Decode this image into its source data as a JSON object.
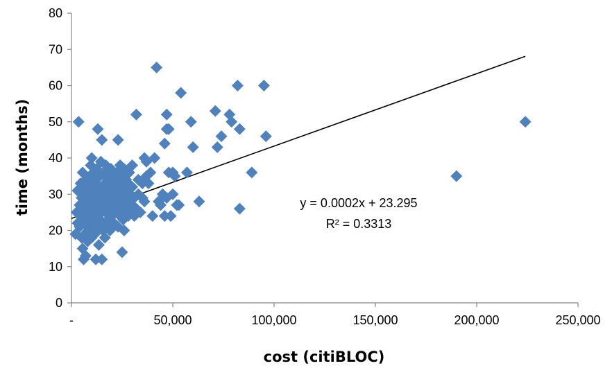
{
  "chart_data": {
    "type": "scatter",
    "xlabel": "cost (citiBLOC)",
    "ylabel": "time (months)",
    "xlim": [
      0,
      250000
    ],
    "ylim": [
      0,
      80
    ],
    "x_ticks": [
      0,
      50000,
      100000,
      150000,
      200000,
      250000
    ],
    "x_tick_labels": [
      "-",
      "50,000",
      "100,000",
      "150,000",
      "200,000",
      "250,000"
    ],
    "y_ticks": [
      0,
      10,
      20,
      30,
      40,
      50,
      60,
      70,
      80
    ],
    "y_tick_labels": [
      "0",
      "10",
      "20",
      "30",
      "40",
      "50",
      "60",
      "70",
      "80"
    ],
    "grid": false,
    "marker": "diamond",
    "marker_color": "#4F81BD",
    "trendline": {
      "type": "linear",
      "slope": 0.0002,
      "intercept": 23.295,
      "x_range": [
        0,
        224000
      ],
      "color": "#000000",
      "equation_label": "y = 0.0002x + 23.295",
      "r2_label": "R² = 0.3313"
    },
    "points": [
      [
        2000,
        19
      ],
      [
        2500,
        25
      ],
      [
        3000,
        31
      ],
      [
        3000,
        22
      ],
      [
        3500,
        50
      ],
      [
        4000,
        27
      ],
      [
        4000,
        21
      ],
      [
        4500,
        33
      ],
      [
        5000,
        29
      ],
      [
        5000,
        24
      ],
      [
        5000,
        18
      ],
      [
        5500,
        15
      ],
      [
        5500,
        36
      ],
      [
        6000,
        12
      ],
      [
        6000,
        26
      ],
      [
        6000,
        31
      ],
      [
        6500,
        22
      ],
      [
        6500,
        19
      ],
      [
        7000,
        34
      ],
      [
        7000,
        28
      ],
      [
        7000,
        13
      ],
      [
        7500,
        25
      ],
      [
        7500,
        30
      ],
      [
        8000,
        21
      ],
      [
        8000,
        17
      ],
      [
        8000,
        33
      ],
      [
        8500,
        27
      ],
      [
        8500,
        24
      ],
      [
        9000,
        35
      ],
      [
        9000,
        29
      ],
      [
        9000,
        20
      ],
      [
        9500,
        38
      ],
      [
        9500,
        26
      ],
      [
        10000,
        40
      ],
      [
        10000,
        31
      ],
      [
        10000,
        23
      ],
      [
        10000,
        18
      ],
      [
        10500,
        28
      ],
      [
        10500,
        34
      ],
      [
        11000,
        22
      ],
      [
        11000,
        36
      ],
      [
        11000,
        25
      ],
      [
        11500,
        30
      ],
      [
        11500,
        19
      ],
      [
        12000,
        27
      ],
      [
        12000,
        33
      ],
      [
        12000,
        12
      ],
      [
        12500,
        37
      ],
      [
        12500,
        24
      ],
      [
        13000,
        48
      ],
      [
        13000,
        29
      ],
      [
        13000,
        21
      ],
      [
        13500,
        31
      ],
      [
        13500,
        16
      ],
      [
        14000,
        26
      ],
      [
        14000,
        35
      ],
      [
        14000,
        23
      ],
      [
        14500,
        39
      ],
      [
        14500,
        28
      ],
      [
        15000,
        45
      ],
      [
        15000,
        32
      ],
      [
        15000,
        25
      ],
      [
        15000,
        12
      ],
      [
        15500,
        20
      ],
      [
        15500,
        30
      ],
      [
        16000,
        36
      ],
      [
        16000,
        27
      ],
      [
        16000,
        22
      ],
      [
        16500,
        33
      ],
      [
        16500,
        18
      ],
      [
        17000,
        29
      ],
      [
        17000,
        38
      ],
      [
        17000,
        25
      ],
      [
        17500,
        31
      ],
      [
        17500,
        21
      ],
      [
        18000,
        34
      ],
      [
        18000,
        27
      ],
      [
        18000,
        23
      ],
      [
        18500,
        30
      ],
      [
        18500,
        36
      ],
      [
        19000,
        26
      ],
      [
        19000,
        32
      ],
      [
        19000,
        20
      ],
      [
        19500,
        28
      ],
      [
        19500,
        37
      ],
      [
        20000,
        33
      ],
      [
        20000,
        24
      ],
      [
        20000,
        29
      ],
      [
        20500,
        27
      ],
      [
        20500,
        35
      ],
      [
        21000,
        31
      ],
      [
        21000,
        22
      ],
      [
        21500,
        26
      ],
      [
        21500,
        34
      ],
      [
        22000,
        30
      ],
      [
        22000,
        28
      ],
      [
        22500,
        25
      ],
      [
        22500,
        36
      ],
      [
        23000,
        45
      ],
      [
        23000,
        32
      ],
      [
        23000,
        21
      ],
      [
        23500,
        27
      ],
      [
        23500,
        33
      ],
      [
        24000,
        29
      ],
      [
        24000,
        38
      ],
      [
        24000,
        24
      ],
      [
        24500,
        31
      ],
      [
        24500,
        26
      ],
      [
        25000,
        14
      ],
      [
        25000,
        35
      ],
      [
        25000,
        28
      ],
      [
        25500,
        30
      ],
      [
        25500,
        23
      ],
      [
        26000,
        37
      ],
      [
        26000,
        27
      ],
      [
        26000,
        20
      ],
      [
        26500,
        32
      ],
      [
        26500,
        25
      ],
      [
        27000,
        29
      ],
      [
        27000,
        34
      ],
      [
        27500,
        26
      ],
      [
        27500,
        31
      ],
      [
        28000,
        33
      ],
      [
        28000,
        24
      ],
      [
        28500,
        28
      ],
      [
        28500,
        36
      ],
      [
        29000,
        30
      ],
      [
        29000,
        25
      ],
      [
        30000,
        38
      ],
      [
        30000,
        27
      ],
      [
        30000,
        32
      ],
      [
        31000,
        29
      ],
      [
        31000,
        24
      ],
      [
        32000,
        52
      ],
      [
        32000,
        26
      ],
      [
        33000,
        30
      ],
      [
        33000,
        34
      ],
      [
        34000,
        25
      ],
      [
        35000,
        33
      ],
      [
        35000,
        29
      ],
      [
        36000,
        40
      ],
      [
        36000,
        28
      ],
      [
        37000,
        35
      ],
      [
        37000,
        39
      ],
      [
        38000,
        33
      ],
      [
        39000,
        36
      ],
      [
        40000,
        24
      ],
      [
        41000,
        40
      ],
      [
        42000,
        65
      ],
      [
        43000,
        28
      ],
      [
        44000,
        27
      ],
      [
        45000,
        30
      ],
      [
        46000,
        24
      ],
      [
        46000,
        44
      ],
      [
        47000,
        48
      ],
      [
        47000,
        52
      ],
      [
        47000,
        29
      ],
      [
        48000,
        36
      ],
      [
        48000,
        48
      ],
      [
        49000,
        24
      ],
      [
        50000,
        30
      ],
      [
        50000,
        36
      ],
      [
        51000,
        35
      ],
      [
        52000,
        27
      ],
      [
        53000,
        27
      ],
      [
        54000,
        58
      ],
      [
        57000,
        36
      ],
      [
        59000,
        50
      ],
      [
        60000,
        43
      ],
      [
        63000,
        28
      ],
      [
        71000,
        53
      ],
      [
        72000,
        43
      ],
      [
        74000,
        46
      ],
      [
        78000,
        52
      ],
      [
        79000,
        50
      ],
      [
        82000,
        60
      ],
      [
        83000,
        48
      ],
      [
        83000,
        26
      ],
      [
        89000,
        36
      ],
      [
        95000,
        60
      ],
      [
        96000,
        46
      ],
      [
        190000,
        35
      ],
      [
        224000,
        50
      ]
    ]
  }
}
